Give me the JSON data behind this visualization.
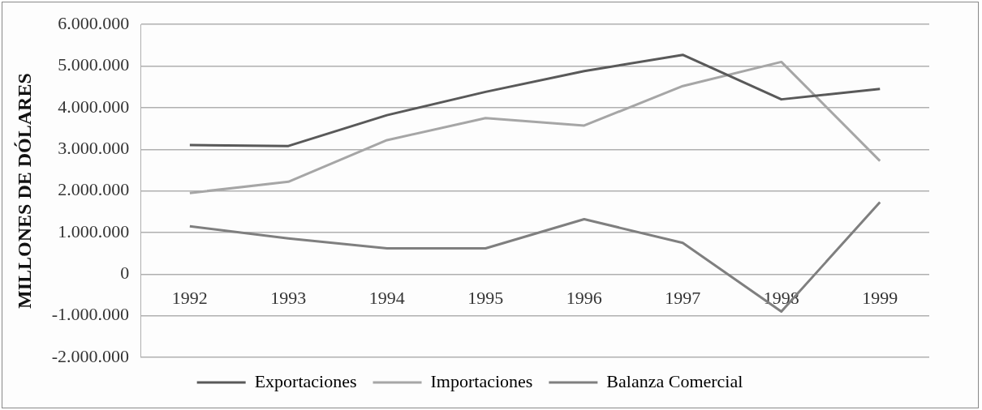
{
  "chart_data": {
    "type": "line",
    "ylabel": "MILLONES DE DÓLARES",
    "categories": [
      "1992",
      "1993",
      "1994",
      "1995",
      "1996",
      "1997",
      "1998",
      "1999"
    ],
    "series": [
      {
        "name": "Exportaciones",
        "color": "#595959",
        "values": [
          3100000,
          3080000,
          3820000,
          4380000,
          4880000,
          5270000,
          4200000,
          4450000
        ]
      },
      {
        "name": "Importaciones",
        "color": "#a6a6a6",
        "values": [
          1950000,
          2220000,
          3220000,
          3750000,
          3570000,
          4520000,
          5100000,
          2720000
        ]
      },
      {
        "name": "Balanza Comercial",
        "color": "#7f7f7f",
        "values": [
          1150000,
          860000,
          620000,
          620000,
          1320000,
          750000,
          -900000,
          1730000
        ]
      }
    ],
    "ylim": [
      -2000000,
      6000000
    ],
    "yticks": [
      {
        "value": -2000000,
        "label": "-2.000.000"
      },
      {
        "value": -1000000,
        "label": "-1.000.000"
      },
      {
        "value": 0,
        "label": "0"
      },
      {
        "value": 1000000,
        "label": "1.000.000"
      },
      {
        "value": 2000000,
        "label": "2.000.000"
      },
      {
        "value": 3000000,
        "label": "3.000.000"
      },
      {
        "value": 4000000,
        "label": "4.000.000"
      },
      {
        "value": 5000000,
        "label": "5.000.000"
      },
      {
        "value": 6000000,
        "label": "6.000.000"
      }
    ],
    "grid": "y",
    "legend": "bottom",
    "marker": "none",
    "line_style": "solid"
  }
}
